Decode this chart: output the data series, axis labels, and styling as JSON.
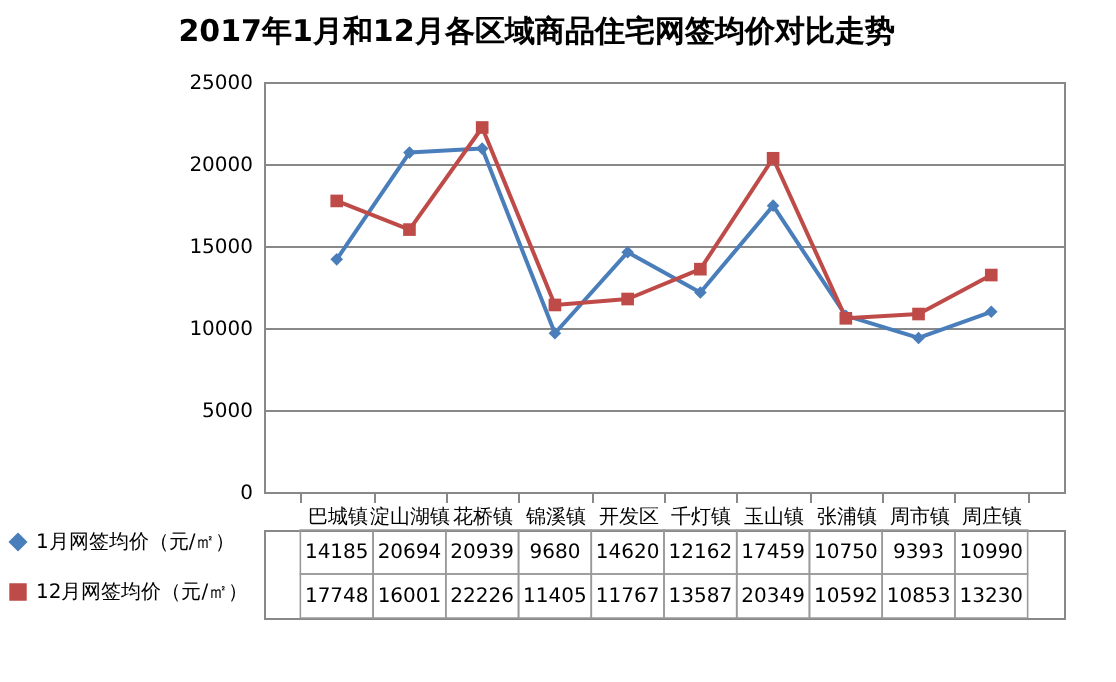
{
  "chart_data": {
    "type": "line",
    "title": "2017年1月和12月各区域商品住宅网签均价对比走势",
    "categories": [
      "巴城镇",
      "淀山湖镇",
      "花桥镇",
      "锦溪镇",
      "开发区",
      "千灯镇",
      "玉山镇",
      "张浦镇",
      "周市镇",
      "周庄镇"
    ],
    "series": [
      {
        "name": "1月网签均价（元/㎡）",
        "color": "#4a7ebb",
        "marker": "diamond",
        "values": [
          14185,
          20694,
          20939,
          9680,
          14620,
          12162,
          17459,
          10750,
          9393,
          10990
        ]
      },
      {
        "name": "12月网签均价（元/㎡）",
        "color": "#be4b48",
        "marker": "square",
        "values": [
          17748,
          16001,
          22226,
          11405,
          11767,
          13587,
          20349,
          10592,
          10853,
          13230
        ]
      }
    ],
    "ylim": [
      0,
      25000
    ],
    "yticks": [
      0,
      5000,
      10000,
      15000,
      20000,
      25000
    ],
    "grid": "y",
    "legend": "bottom left",
    "data_labels": true
  }
}
